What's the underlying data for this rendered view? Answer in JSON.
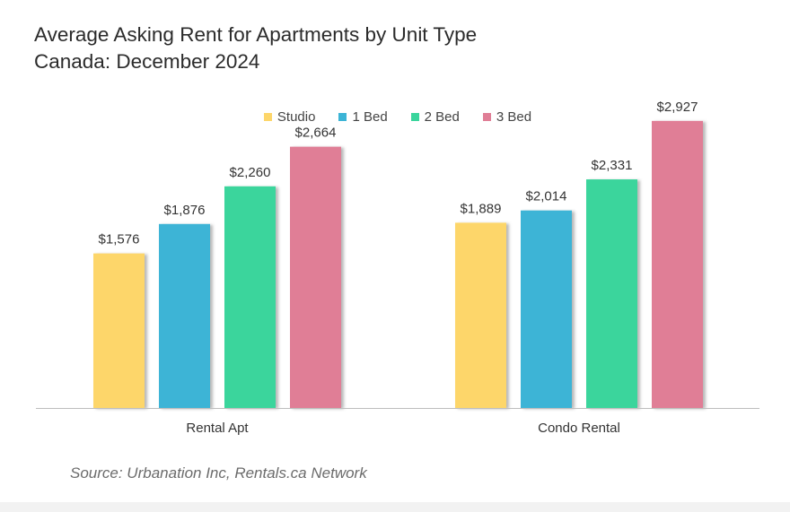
{
  "chart_data": {
    "type": "bar",
    "title": "Average Asking Rent for Apartments by Unit Type",
    "subtitle": "Canada: December 2024",
    "categories": [
      "Rental Apt",
      "Condo Rental"
    ],
    "series": [
      {
        "name": "Studio",
        "color": "#fdd66a",
        "values": [
          1576,
          1889
        ],
        "labels": [
          "$1,576",
          "$1,889"
        ]
      },
      {
        "name": "1 Bed",
        "color": "#3cb4d6",
        "values": [
          1876,
          2014
        ],
        "labels": [
          "$1,876",
          "$2,014"
        ]
      },
      {
        "name": "2 Bed",
        "color": "#3ad59c",
        "values": [
          2260,
          2331
        ],
        "labels": [
          "$2,260",
          "$2,331"
        ]
      },
      {
        "name": "3 Bed",
        "color": "#e07e96",
        "values": [
          2664,
          2927
        ],
        "labels": [
          "$2,664",
          "$2,927"
        ]
      }
    ],
    "ylim": [
      0,
      3200
    ],
    "grid": false,
    "legend": "top-center",
    "source": "Source: Urbanation Inc, Rentals.ca Network"
  }
}
